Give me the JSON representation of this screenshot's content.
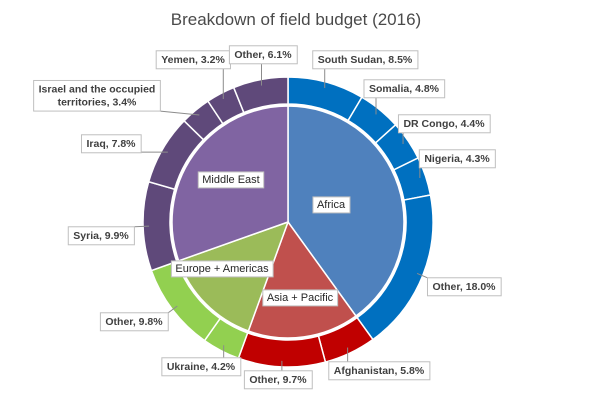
{
  "chart_data": {
    "type": "pie",
    "subtype": "sunburst",
    "title": "Breakdown of field budget (2016)",
    "inner_ring": [
      {
        "label": "Africa",
        "color": "#4F81BD"
      },
      {
        "label": "Asia + Pacific",
        "color": "#C0504D"
      },
      {
        "label": "Europe + Americas",
        "color": "#9BBB59"
      },
      {
        "label": "Middle East",
        "color": "#8064A2"
      }
    ],
    "outer_ring": [
      {
        "label": "South Sudan",
        "value": 8.5,
        "value_label": "8.5%",
        "group": "Africa",
        "color": "#0070C0"
      },
      {
        "label": "Somalia",
        "value": 4.8,
        "value_label": "4.8%",
        "group": "Africa",
        "color": "#0070C0"
      },
      {
        "label": "DR Congo",
        "value": 4.4,
        "value_label": "4.4%",
        "group": "Africa",
        "color": "#0070C0"
      },
      {
        "label": "Nigeria",
        "value": 4.3,
        "value_label": "4.3%",
        "group": "Africa",
        "color": "#0070C0"
      },
      {
        "label": "Other",
        "value": 18.0,
        "value_label": "18.0%",
        "group": "Africa",
        "color": "#0070C0"
      },
      {
        "label": "Afghanistan",
        "value": 5.8,
        "value_label": "5.8%",
        "group": "Asia + Pacific",
        "color": "#C00000"
      },
      {
        "label": "Other",
        "value": 9.7,
        "value_label": "9.7%",
        "group": "Asia + Pacific",
        "color": "#C00000"
      },
      {
        "label": "Ukraine",
        "value": 4.2,
        "value_label": "4.2%",
        "group": "Europe + Americas",
        "color": "#92D050"
      },
      {
        "label": "Other",
        "value": 9.8,
        "value_label": "9.8%",
        "group": "Europe + Americas",
        "color": "#92D050"
      },
      {
        "label": "Syria",
        "value": 9.9,
        "value_label": "9.9%",
        "group": "Middle East",
        "color": "#5F497A"
      },
      {
        "label": "Iraq",
        "value": 7.8,
        "value_label": "7.8%",
        "group": "Middle East",
        "color": "#5F497A"
      },
      {
        "label": "Israel and the occupied territories",
        "value": 3.4,
        "value_label": "3.4%",
        "group": "Middle East",
        "color": "#5F497A"
      },
      {
        "label": "Yemen",
        "value": 3.2,
        "value_label": "3.2%",
        "group": "Middle East",
        "color": "#5F497A"
      },
      {
        "label": "Other",
        "value": 6.1,
        "value_label": "6.1%",
        "group": "Middle East",
        "color": "#5F497A"
      }
    ],
    "segment_divider_color": "#ffffff"
  }
}
